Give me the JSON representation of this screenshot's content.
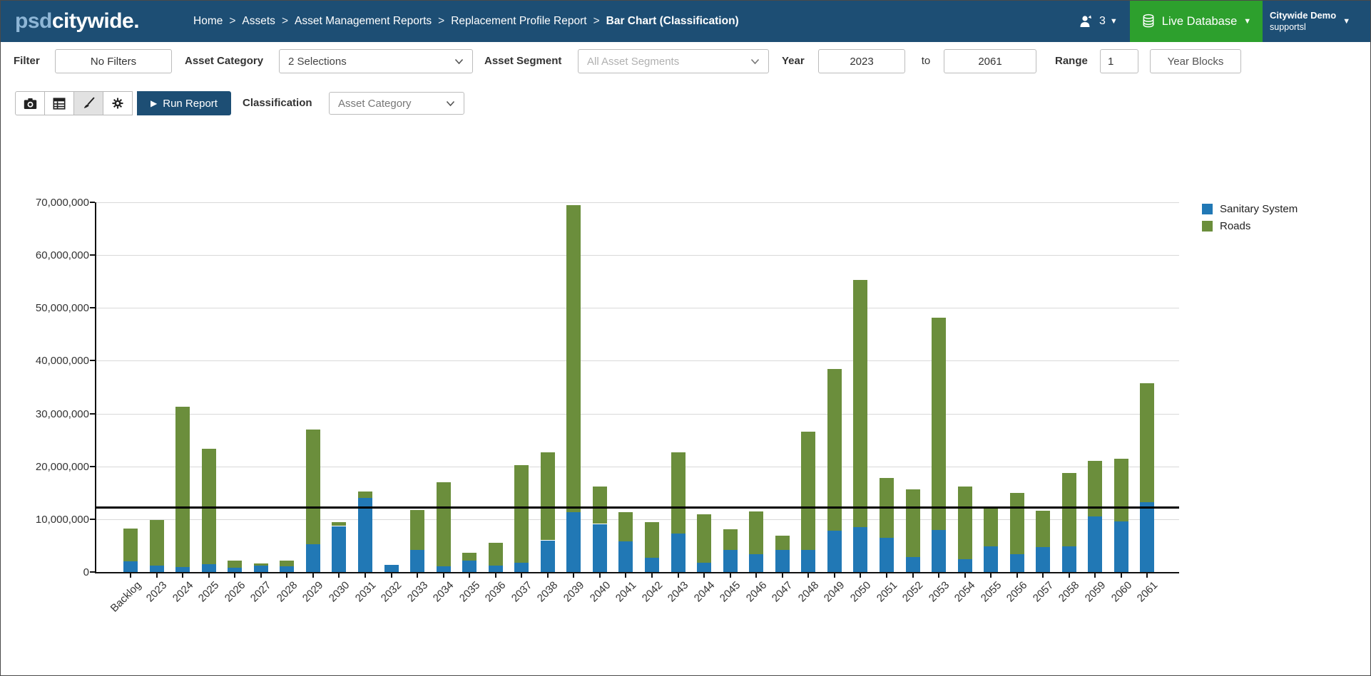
{
  "header": {
    "logo_part1": "psd",
    "logo_part2": "citywide",
    "logo_suffix": ".",
    "breadcrumbs": [
      "Home",
      "Assets",
      "Asset Management Reports",
      "Replacement Profile Report",
      "Bar Chart (Classification)"
    ],
    "breadcrumb_separator": ">",
    "user_count": "3",
    "live_database_label": "Live Database",
    "account_name": "Citywide Demo",
    "account_sub": "supportsl"
  },
  "filters": {
    "filter_label": "Filter",
    "no_filters_label": "No Filters",
    "asset_category_label": "Asset Category",
    "asset_category_value": "2 Selections",
    "asset_segment_label": "Asset Segment",
    "asset_segment_value": "All Asset Segments",
    "year_label": "Year",
    "year_from": "2023",
    "to_label": "to",
    "year_to": "2061",
    "range_label": "Range",
    "range_value": "1",
    "year_blocks_label": "Year Blocks"
  },
  "toolbar": {
    "run_report_label": "Run Report",
    "classification_label": "Classification",
    "classification_value": "Asset Category"
  },
  "chart_data": {
    "type": "bar",
    "stacked": true,
    "grid": true,
    "legend_position": "right",
    "ylim": [
      0,
      70000000
    ],
    "ytick_interval": 10000000,
    "ytick_labels": [
      "0",
      "10,000,000",
      "20,000,000",
      "30,000,000",
      "40,000,000",
      "50,000,000",
      "60,000,000",
      "70,000,000"
    ],
    "threshold_line": 12300000,
    "categories": [
      "Backlog",
      "2023",
      "2024",
      "2025",
      "2026",
      "2027",
      "2028",
      "2029",
      "2030",
      "2031",
      "2032",
      "2033",
      "2034",
      "2035",
      "2036",
      "2037",
      "2038",
      "2039",
      "2040",
      "2041",
      "2042",
      "2043",
      "2044",
      "2045",
      "2046",
      "2047",
      "2048",
      "2049",
      "2050",
      "2051",
      "2052",
      "2053",
      "2054",
      "2055",
      "2056",
      "2057",
      "2058",
      "2059",
      "2060",
      "2061"
    ],
    "series": [
      {
        "name": "Sanitary System",
        "color": "#2178b5",
        "values": [
          2000000,
          1200000,
          900000,
          1500000,
          800000,
          1200000,
          1100000,
          5300000,
          8700000,
          14000000,
          1300000,
          4200000,
          1100000,
          2200000,
          1200000,
          1700000,
          6000000,
          11300000,
          9100000,
          5800000,
          2700000,
          7300000,
          1800000,
          4200000,
          3400000,
          4200000,
          4200000,
          7800000,
          8500000,
          6500000,
          2800000,
          8000000,
          2400000,
          4800000,
          3400000,
          4700000,
          4900000,
          10500000,
          9600000,
          13200000
        ]
      },
      {
        "name": "Roads",
        "color": "#6b8e3c",
        "values": [
          6200000,
          8700000,
          30400000,
          21800000,
          1400000,
          400000,
          1000000,
          21700000,
          700000,
          1200000,
          0,
          7500000,
          15900000,
          1500000,
          4400000,
          18600000,
          16600000,
          58200000,
          7100000,
          5600000,
          6700000,
          15300000,
          9100000,
          3900000,
          8100000,
          2700000,
          22400000,
          30600000,
          46800000,
          11300000,
          12800000,
          40200000,
          13800000,
          7500000,
          11600000,
          6900000,
          13800000,
          10500000,
          11900000,
          22600000
        ]
      }
    ]
  }
}
